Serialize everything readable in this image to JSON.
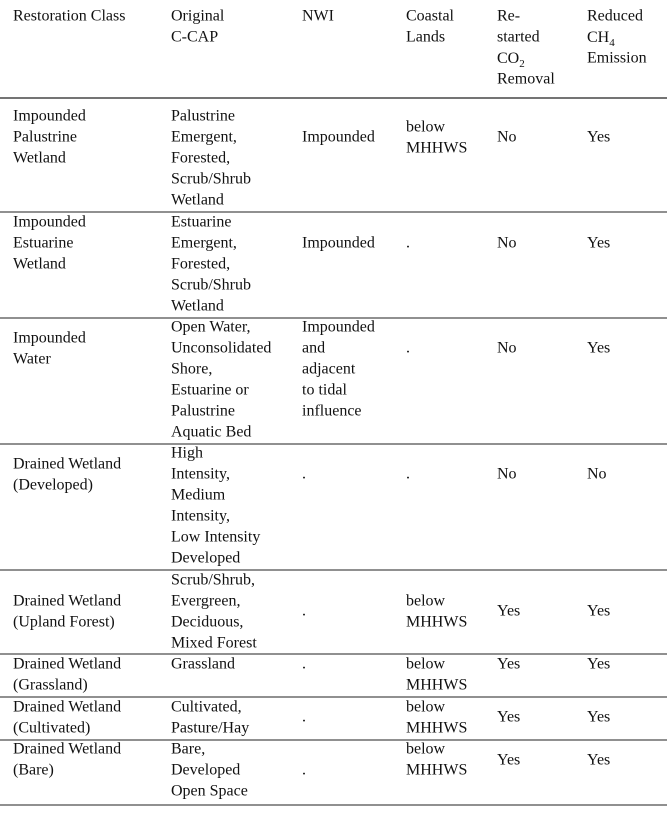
{
  "table": {
    "header": [
      [
        "Restoration Class"
      ],
      [
        "Original",
        "C-CAP"
      ],
      [
        "NWI"
      ],
      [
        "Coastal",
        "Lands"
      ],
      [
        "Re-",
        "started",
        {
          "text": "CO",
          "sub": "2"
        },
        "Removal"
      ],
      [
        "Reduced",
        {
          "text": "CH",
          "sub": "4"
        },
        "Emission"
      ]
    ],
    "rows": [
      [
        [
          "Impounded",
          "Palustrine",
          "Wetland"
        ],
        [
          "Palustrine",
          "Emergent,",
          "Forested,",
          "Scrub/Shrub",
          "Wetland"
        ],
        [
          "Impounded"
        ],
        [
          "below",
          "MHHWS"
        ],
        [
          "No"
        ],
        [
          "Yes"
        ]
      ],
      [
        [
          "Impounded",
          "Estuarine",
          "Wetland"
        ],
        [
          "Estuarine",
          "Emergent,",
          "Forested,",
          "Scrub/Shrub",
          "Wetland"
        ],
        [
          "Impounded"
        ],
        [
          "."
        ],
        [
          "No"
        ],
        [
          "Yes"
        ]
      ],
      [
        [
          "Impounded",
          "Water"
        ],
        [
          "Open Water,",
          "Unconsolidated",
          "Shore,",
          "Estuarine    or",
          "Palustrine",
          "Aquatic Bed"
        ],
        [
          "Impounded",
          "and",
          "adjacent",
          "to tidal",
          "influence"
        ],
        [
          "."
        ],
        [
          "No"
        ],
        [
          "Yes"
        ]
      ],
      [
        [
          "Drained Wetland",
          "(Developed)"
        ],
        [
          "High",
          "Intensity,",
          "Medium",
          "Intensity,",
          "Low  Intensity",
          "Developed"
        ],
        [
          "."
        ],
        [
          "."
        ],
        [
          "No"
        ],
        [
          "No"
        ]
      ],
      [
        [
          "Drained Wetland",
          "(Upland Forest)"
        ],
        [
          "Scrub/Shrub,",
          "Evergreen,",
          "Deciduous,",
          "Mixed Forest"
        ],
        [
          "."
        ],
        [
          "below",
          "MHHWS"
        ],
        [
          "Yes"
        ],
        [
          "Yes"
        ]
      ],
      [
        [
          "Drained  Wetland",
          "(Grassland)"
        ],
        [
          "Grassland"
        ],
        [
          "."
        ],
        [
          "below",
          "MHHWS"
        ],
        [
          "Yes"
        ],
        [
          "Yes"
        ]
      ],
      [
        [
          "Drained Wetland",
          "(Cultivated)"
        ],
        [
          "Cultivated,",
          "Pasture/Hay"
        ],
        [
          "."
        ],
        [
          "below",
          "MHHWS"
        ],
        [
          "Yes"
        ],
        [
          "Yes"
        ]
      ],
      [
        [
          "Drained Wetland",
          "(Bare)"
        ],
        [
          "Bare,",
          "Developed",
          "Open Space"
        ],
        [
          "."
        ],
        [
          "below",
          "MHHWS"
        ],
        [
          "Yes"
        ],
        [
          "Yes"
        ]
      ]
    ]
  }
}
